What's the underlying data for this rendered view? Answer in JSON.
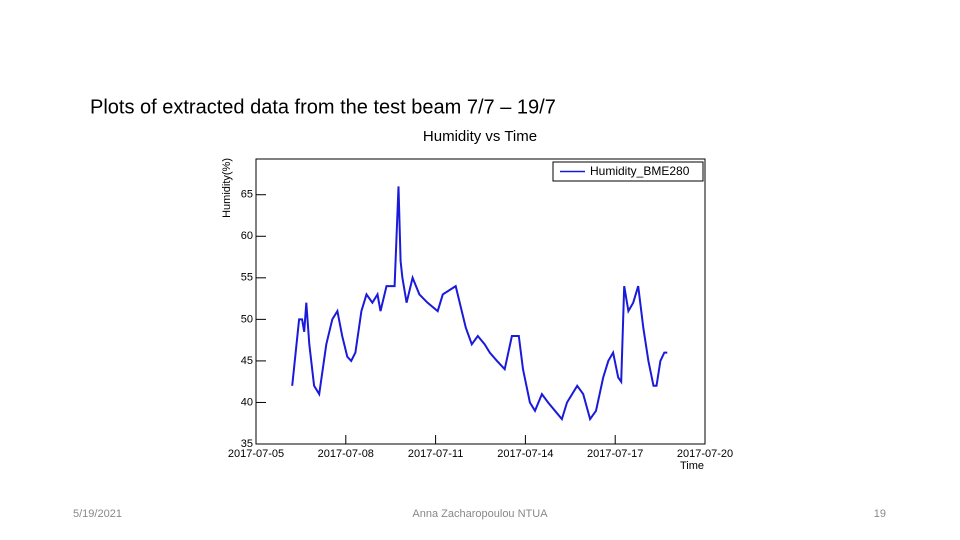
{
  "slide_title": "Plots of extracted data from the test beam 7/7 – 19/7",
  "footer": {
    "date": "5/19/2021",
    "author": "Anna Zacharopoulou NTUA",
    "page": "19"
  },
  "chart_data": {
    "type": "line",
    "title": "Humidity vs Time",
    "x_label": "Time",
    "y_label": "Humidity(%)",
    "x": [
      1.21,
      1.44,
      1.54,
      1.61,
      1.68,
      1.78,
      1.94,
      2.11,
      2.35,
      2.55,
      2.72,
      2.88,
      3.05,
      3.18,
      3.32,
      3.52,
      3.69,
      3.89,
      4.06,
      4.16,
      4.36,
      4.63,
      4.76,
      4.83,
      4.89,
      5.03,
      5.23,
      5.46,
      5.73,
      6.07,
      6.24,
      6.67,
      7.01,
      7.21,
      7.41,
      7.64,
      7.81,
      8.05,
      8.31,
      8.55,
      8.78,
      8.92,
      9.15,
      9.32,
      9.55,
      9.76,
      9.99,
      10.22,
      10.39,
      10.73,
      10.93,
      11.16,
      11.36,
      11.6,
      11.77,
      11.93,
      12.1,
      12.2,
      12.3,
      12.44,
      12.6,
      12.77,
      12.94,
      13.11,
      13.28,
      13.38,
      13.51,
      13.64,
      13.74
    ],
    "series": [
      {
        "name": "Humidity_BME280",
        "color": "#1a1adb",
        "values": [
          42,
          50,
          50,
          48.5,
          52,
          47,
          42,
          41,
          47,
          50,
          51,
          48,
          45.5,
          45,
          46,
          51,
          53,
          52,
          53,
          51,
          54,
          54,
          66,
          57,
          55,
          52,
          55,
          53,
          52,
          51,
          53,
          54,
          49,
          47,
          48,
          47,
          46,
          45,
          44,
          48,
          48,
          44,
          40,
          39,
          41,
          40,
          39,
          38,
          40,
          42,
          41,
          38,
          39,
          43,
          45,
          46,
          43,
          42.5,
          54,
          51,
          52,
          54,
          49,
          45,
          42,
          42,
          45,
          46,
          46
        ]
      }
    ],
    "xlim": [
      0,
      15
    ],
    "xticks": [
      {
        "value": 0,
        "label": "2017-07-05"
      },
      {
        "value": 3,
        "label": "2017-07-08"
      },
      {
        "value": 6,
        "label": "2017-07-11"
      },
      {
        "value": 9,
        "label": "2017-07-14"
      },
      {
        "value": 12,
        "label": "2017-07-17"
      },
      {
        "value": 15,
        "label": "2017-07-20"
      }
    ],
    "ylim": [
      35,
      69.3
    ],
    "yticks": [
      35,
      40,
      45,
      50,
      55,
      60,
      65
    ],
    "legend": "top-right",
    "grid": false
  }
}
